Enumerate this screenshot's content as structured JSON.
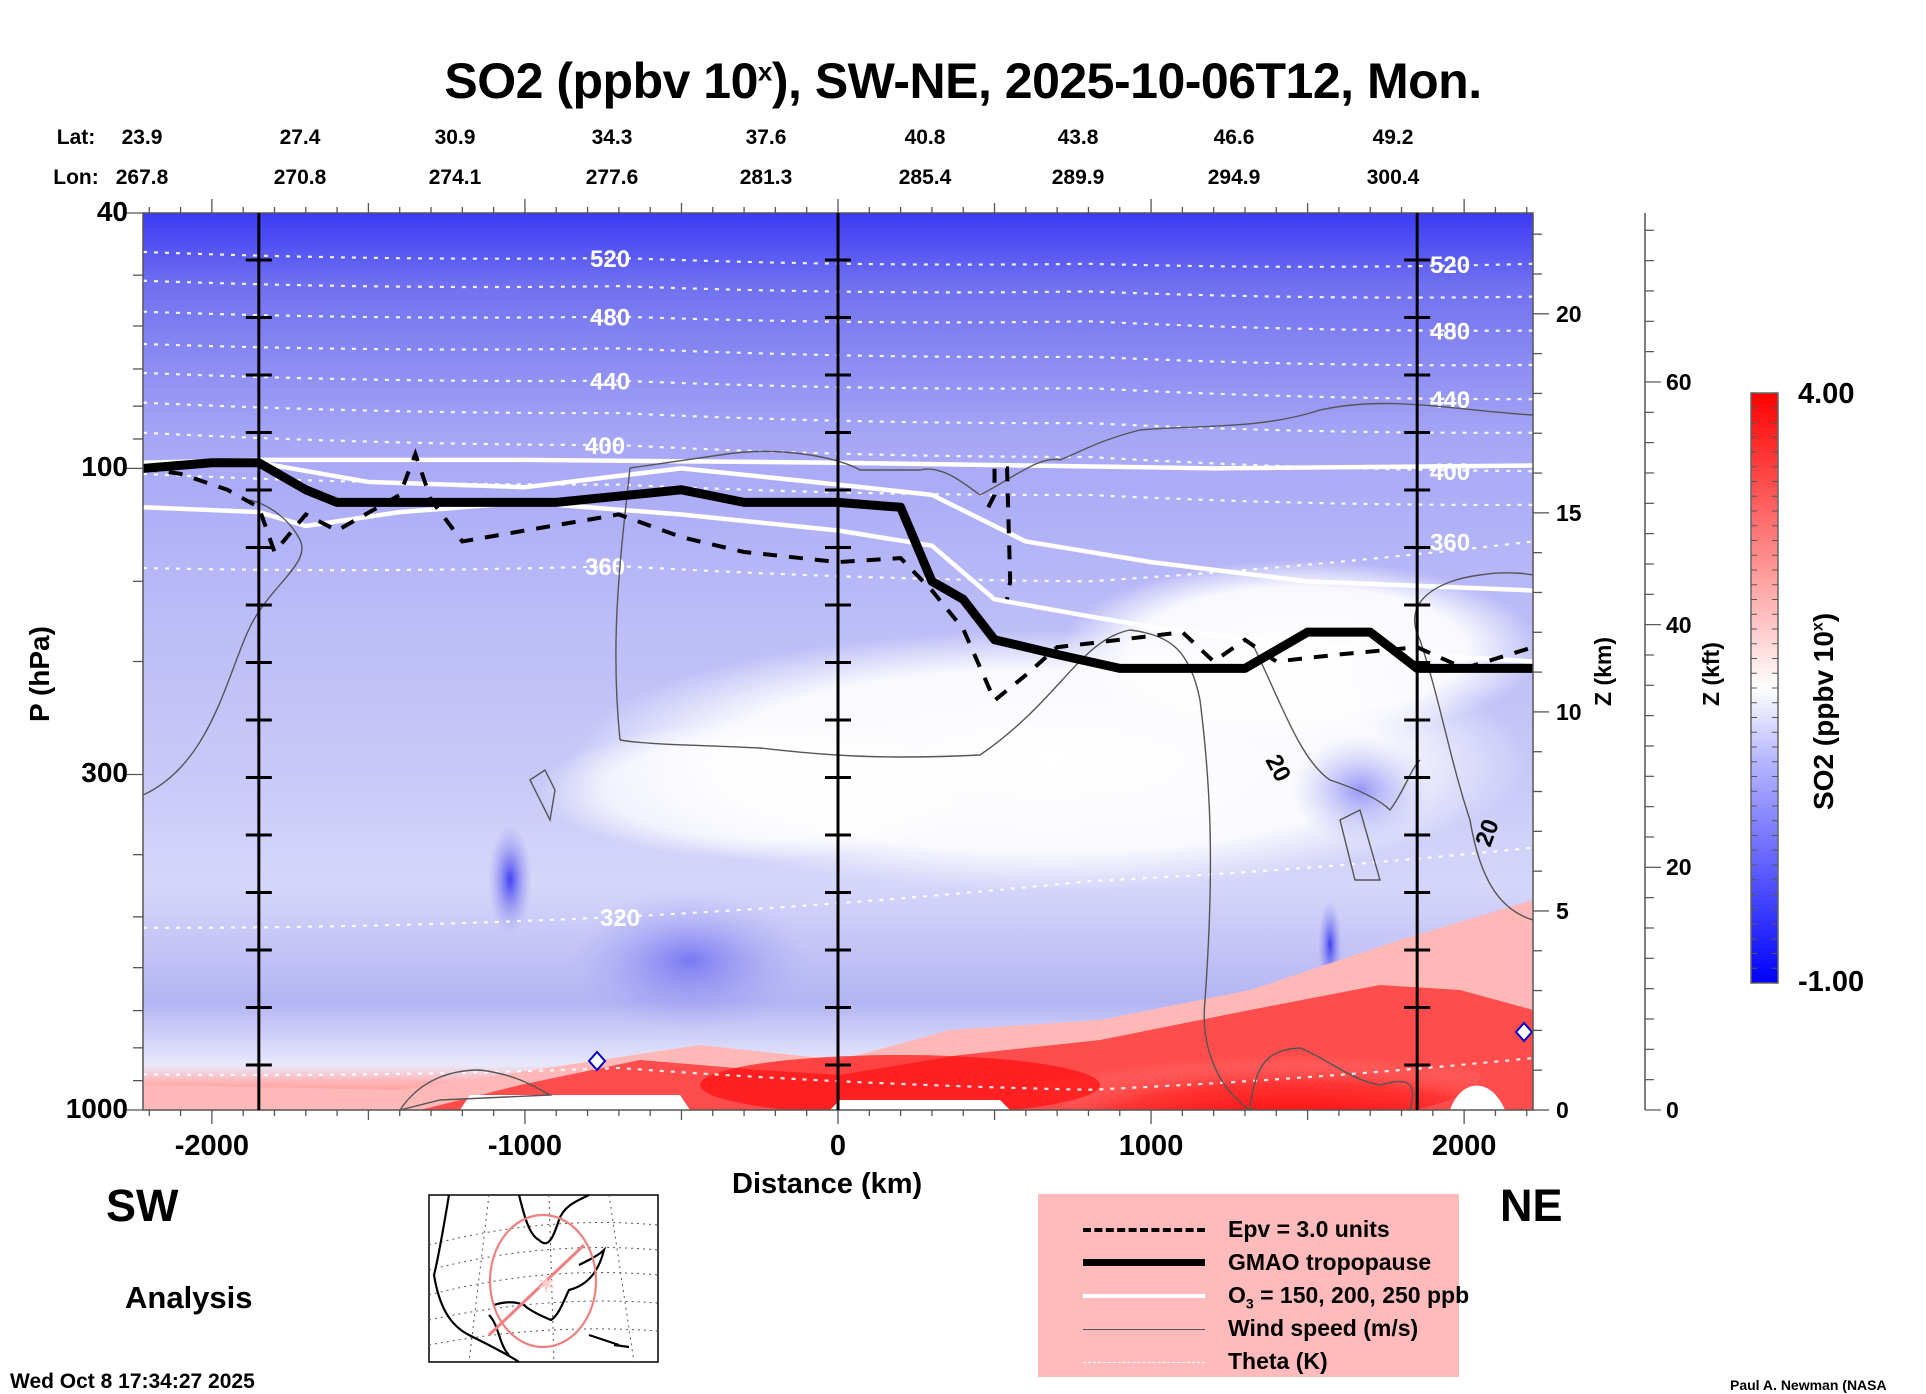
{
  "header": {
    "title_prefix": "SO2 (ppbv 10",
    "title_sup": "x",
    "title_suffix": "), SW-NE, 2025-10-06T12, Mon.",
    "lat_label": "Lat:",
    "lon_label": "Lon:",
    "lat_values": [
      "23.9",
      "27.4",
      "30.9",
      "34.3",
      "37.6",
      "40.8",
      "43.8",
      "46.6",
      "49.2"
    ],
    "lon_values": [
      "267.8",
      "270.8",
      "274.1",
      "277.6",
      "281.3",
      "285.4",
      "289.9",
      "294.9",
      "300.4"
    ]
  },
  "labels": {
    "sw": "SW",
    "ne": "NE",
    "analysis": "Analysis",
    "timestamp": "Wed Oct  8 17:34:27 2025",
    "credit": "Paul A. Newman (NASA"
  },
  "legend": {
    "items": [
      {
        "label": "Epv = 3.0 units",
        "style": "dashed-thick"
      },
      {
        "label": "GMAO tropopause",
        "style": "solid-heavy"
      },
      {
        "label_main": "O",
        "label_sub": "3",
        "label_rest": " = 150, 200, 250 ppb",
        "style": "solid-white"
      },
      {
        "label": "Wind speed (m/s)",
        "style": "thin-gray"
      },
      {
        "label": "Theta (K)",
        "style": "dotted-white"
      }
    ],
    "background": "#ffbbbb"
  },
  "colorbar": {
    "max_label": "4.00",
    "min_label": "-1.00",
    "title_prefix": "SO2 (ppbv 10",
    "title_sup": "x",
    "title_suffix": ")",
    "min": -1.0,
    "max": 4.0,
    "low_color": "#0000ff",
    "mid_color": "#ffffff",
    "high_color": "#ff0000"
  },
  "inset_map": {
    "description": "North America locator map with SW-NE cross-section line",
    "line_color": "#f08080"
  },
  "chart_data": {
    "type": "heatmap",
    "title": "SO2 (ppbv 10^x), SW-NE, 2025-10-06T12, Mon.",
    "xlabel": "Distance (km)",
    "ylabel": "P (hPa)",
    "y2label": "Z (km)",
    "y3label": "Z (kft)",
    "xlim": [
      -2220,
      2220
    ],
    "ylim": [
      1000,
      40
    ],
    "yscale": "log",
    "x_ticks": [
      -2000,
      -1000,
      0,
      1000,
      2000
    ],
    "x_tick_labels": [
      "-2000",
      "-1000",
      "0",
      "1000",
      "2000"
    ],
    "y_ticks": [
      40,
      100,
      300,
      1000
    ],
    "y_tick_labels": [
      "40",
      "100",
      "300",
      "1000"
    ],
    "z_km_ticks": [
      0,
      5,
      10,
      15,
      20
    ],
    "z_km_tick_labels": [
      "0",
      "5",
      "10",
      "15",
      "20"
    ],
    "z_kft_ticks": [
      0,
      20,
      40,
      60
    ],
    "z_kft_tick_labels": [
      "0",
      "20",
      "40",
      "60"
    ],
    "vertical_lines_km": [
      -1850,
      0,
      1850
    ],
    "colorbar_range": [
      -1.0,
      4.0
    ],
    "theta_contours": [
      {
        "value": 520,
        "label": "520",
        "p": [
          46,
          47,
          48,
          48
        ]
      },
      {
        "value": 500,
        "label": "",
        "p": [
          51,
          52,
          53,
          54
        ]
      },
      {
        "value": 480,
        "label": "480",
        "p": [
          57,
          58,
          59,
          61
        ]
      },
      {
        "value": 460,
        "label": "",
        "p": [
          64,
          65,
          67,
          69
        ]
      },
      {
        "value": 440,
        "label": "440",
        "p": [
          71,
          73,
          75,
          78
        ]
      },
      {
        "value": 420,
        "label": "",
        "p": [
          79,
          82,
          85,
          88
        ]
      },
      {
        "value": 400,
        "label": "400",
        "p": [
          88,
          92,
          96,
          101
        ]
      },
      {
        "value": 380,
        "label": "",
        "p": [
          102,
          106,
          110,
          114
        ]
      },
      {
        "value": 360,
        "label": "360",
        "p": [
          143,
          142,
          150,
          130
        ]
      },
      {
        "value": 320,
        "label": "320",
        "p": [
          520,
          500,
          440,
          390
        ]
      },
      {
        "value": 300,
        "label": "",
        "p": [
          880,
          860,
          930,
          830
        ]
      }
    ],
    "theta_x": [
      -2220,
      -700,
      800,
      2220
    ],
    "tropopause": {
      "x": [
        -2220,
        -2000,
        -1850,
        -1700,
        -1600,
        -1400,
        -900,
        -500,
        -300,
        0,
        200,
        300,
        400,
        500,
        700,
        900,
        1300,
        1500,
        1700,
        1850,
        2220
      ],
      "p": [
        100,
        98,
        98,
        108,
        113,
        113,
        113,
        108,
        113,
        113,
        115,
        150,
        160,
        185,
        195,
        205,
        205,
        180,
        180,
        205,
        205
      ]
    },
    "wind_speed_contour_labels": [
      "20",
      "20"
    ],
    "series": [
      {
        "name": "Epv = 3.0 units",
        "style": "dashed"
      },
      {
        "name": "GMAO tropopause",
        "style": "thick-solid"
      },
      {
        "name": "O3 = 150, 200, 250 ppb",
        "style": "white-solid"
      },
      {
        "name": "Wind speed (m/s)",
        "style": "thin-gray"
      },
      {
        "name": "Theta (K)",
        "style": "white-dotted"
      }
    ]
  }
}
